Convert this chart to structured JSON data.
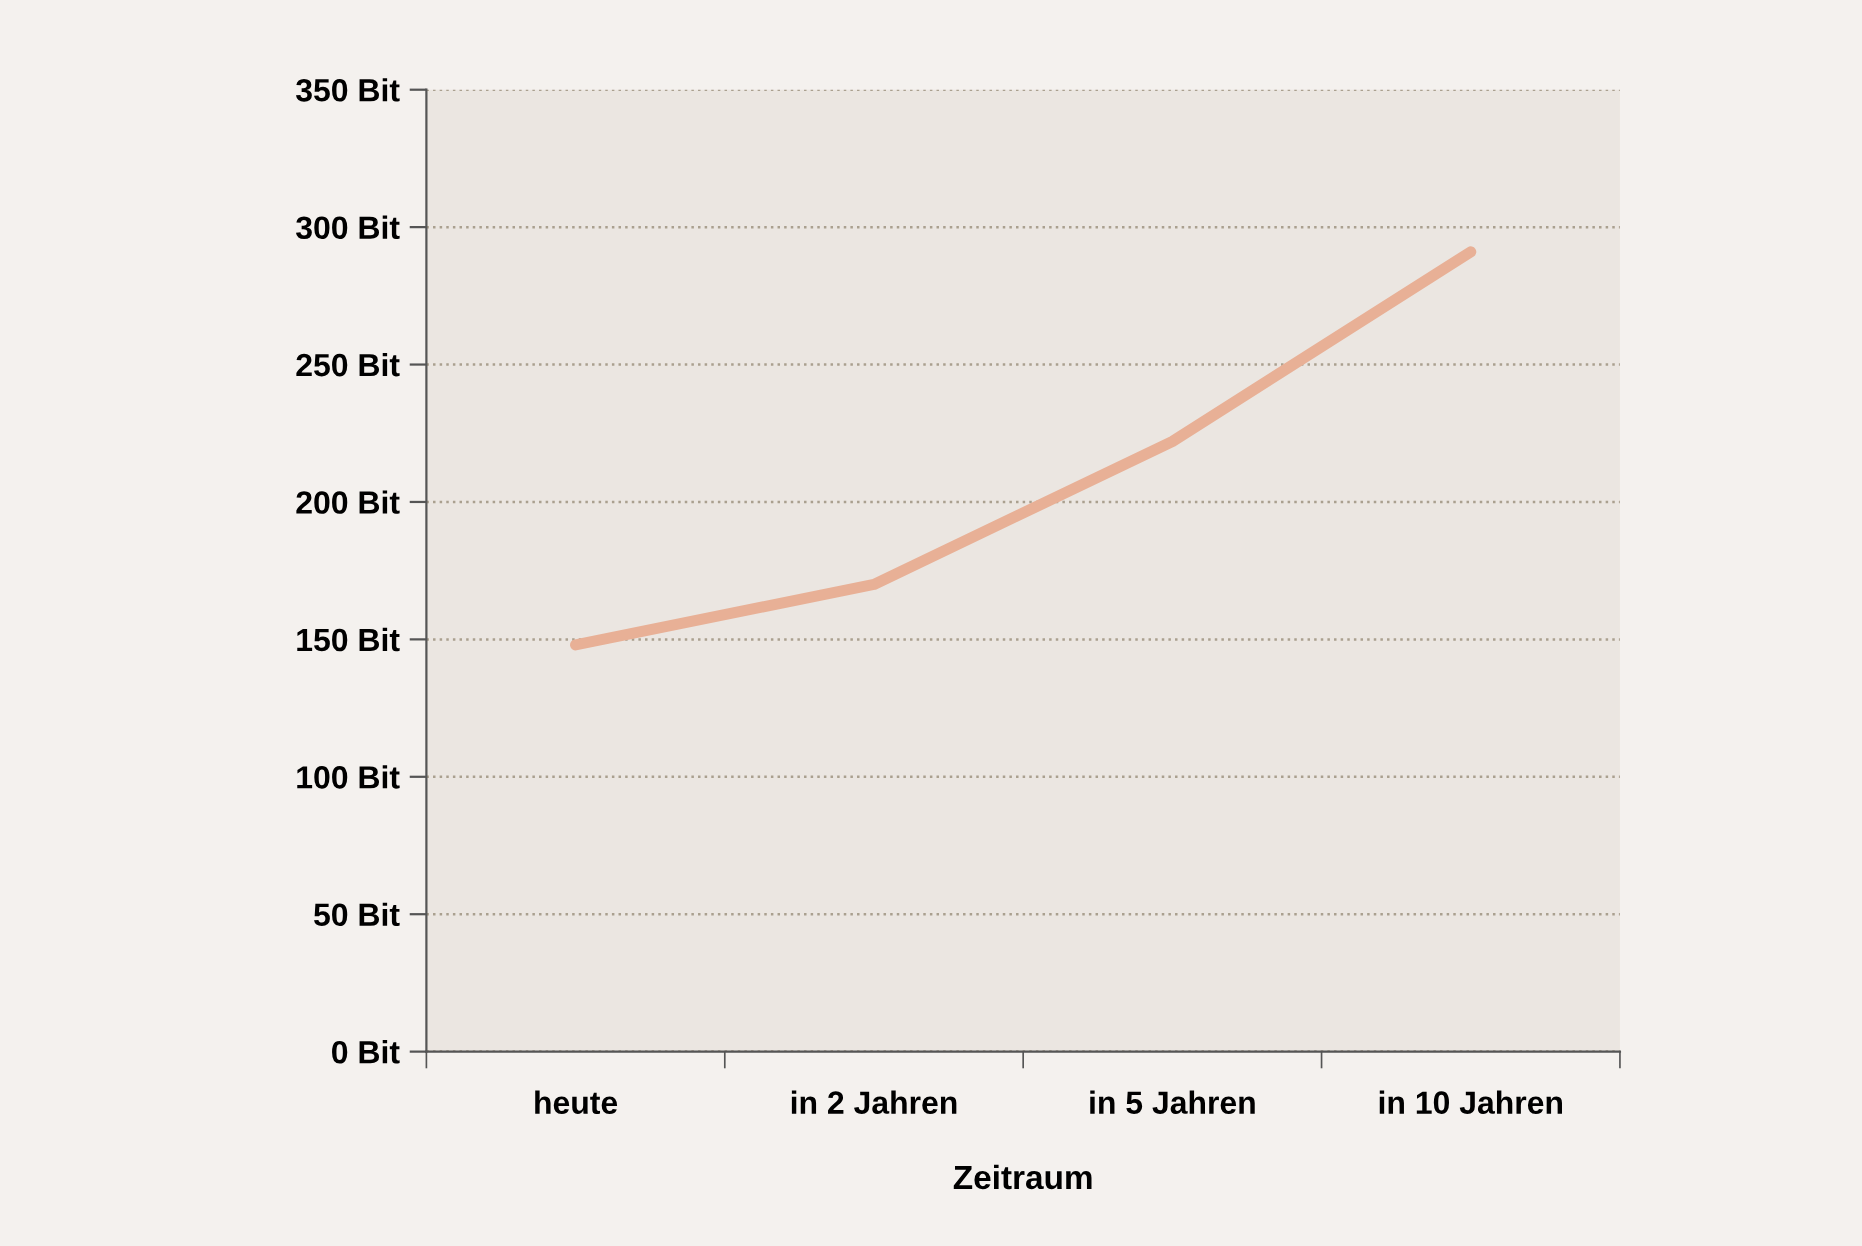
{
  "chart_data": {
    "type": "line",
    "xlabel": "Zeitraum",
    "categories": [
      "heute",
      "in 2 Jahren",
      "in 5 Jahren",
      "in 10 Jahren"
    ],
    "series": [
      {
        "color": "#e8b096",
        "values": [
          148,
          170,
          222,
          291
        ]
      }
    ],
    "ylim": [
      0,
      350
    ],
    "yticks": [
      {
        "value": 0,
        "label": "0 Bit"
      },
      {
        "value": 50,
        "label": "50 Bit"
      },
      {
        "value": 100,
        "label": "100 Bit"
      },
      {
        "value": 150,
        "label": "150 Bit"
      },
      {
        "value": 200,
        "label": "200 Bit"
      },
      {
        "value": 250,
        "label": "250 Bit"
      },
      {
        "value": 300,
        "label": "300 Bit"
      },
      {
        "value": 350,
        "label": "350 Bit"
      }
    ],
    "grid": "y",
    "legend": false,
    "marker": "none",
    "line_style": "solid"
  }
}
